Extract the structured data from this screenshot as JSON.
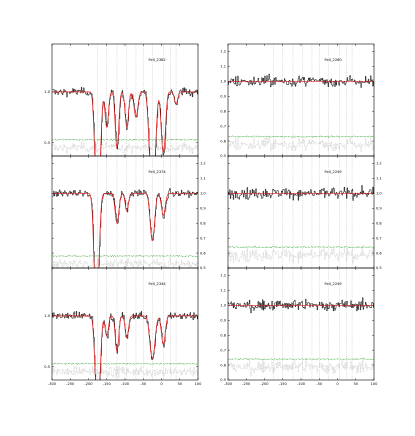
{
  "chart_data": [
    {
      "type": "line",
      "title": "FeII_2382",
      "column": "left",
      "row": 0,
      "xlim": [
        -300,
        100
      ],
      "ylim": [
        0.37,
        1.47
      ],
      "ytick_side": "left",
      "yticks": [
        0.5,
        1.0,
        1.5
      ],
      "ytick_labels": [
        "0.5",
        "1.0",
        "1.5"
      ],
      "noise_level": 0.53,
      "continuum": 1.0,
      "components": [
        {
          "v": -175,
          "depth": 0.92,
          "b": 8
        },
        {
          "v": -150,
          "depth": 0.35,
          "b": 6
        },
        {
          "v": -122,
          "depth": 0.55,
          "b": 6
        },
        {
          "v": -95,
          "depth": 0.35,
          "b": 6
        },
        {
          "v": -70,
          "depth": 0.25,
          "b": 7
        },
        {
          "v": -25,
          "depth": 0.88,
          "b": 9
        },
        {
          "v": 5,
          "depth": 0.6,
          "b": 7
        },
        {
          "v": 40,
          "depth": 0.12,
          "b": 6
        }
      ]
    },
    {
      "type": "line",
      "title": "FeII_2374",
      "column": "left",
      "row": 1,
      "xlim": [
        -300,
        100
      ],
      "ylim": [
        0.5,
        1.25
      ],
      "ytick_side": "right",
      "yticks": [
        0.5,
        0.6,
        0.7,
        0.8,
        0.9,
        1.0,
        1.1,
        1.2
      ],
      "ytick_labels": [
        "0.5",
        "0.6",
        "0.7",
        "0.8",
        "0.9",
        "1.0",
        "1.1",
        "1.2"
      ],
      "noise_level": 0.58,
      "continuum": 1.0,
      "components": [
        {
          "v": -178,
          "depth": 0.72,
          "b": 8
        },
        {
          "v": -122,
          "depth": 0.2,
          "b": 7
        },
        {
          "v": -95,
          "depth": 0.12,
          "b": 6
        },
        {
          "v": -25,
          "depth": 0.32,
          "b": 8
        },
        {
          "v": 5,
          "depth": 0.15,
          "b": 7
        }
      ]
    },
    {
      "type": "line",
      "title": "FeII_2344",
      "column": "left",
      "row": 2,
      "xlim": [
        -300,
        100
      ],
      "ylim": [
        0.37,
        1.47
      ],
      "ytick_side": "left",
      "yticks": [
        0.5,
        1.0,
        1.5
      ],
      "ytick_labels": [
        "0.5",
        "1.0",
        "1.5"
      ],
      "noise_level": 0.53,
      "continuum": 1.0,
      "components": [
        {
          "v": -175,
          "depth": 0.82,
          "b": 8
        },
        {
          "v": -150,
          "depth": 0.2,
          "b": 6
        },
        {
          "v": -122,
          "depth": 0.35,
          "b": 6
        },
        {
          "v": -95,
          "depth": 0.22,
          "b": 6
        },
        {
          "v": -25,
          "depth": 0.42,
          "b": 9
        },
        {
          "v": 5,
          "depth": 0.28,
          "b": 7
        }
      ]
    },
    {
      "type": "line",
      "title": "FeII_2260",
      "column": "right",
      "row": 0,
      "xlim": [
        -300,
        100
      ],
      "ylim": [
        0.5,
        1.25
      ],
      "ytick_side": "left",
      "yticks": [
        0.5,
        0.6,
        0.7,
        0.8,
        0.9,
        1.0,
        1.1,
        1.2
      ],
      "ytick_labels": [
        "0.5",
        "0.6",
        "0.7",
        "0.8",
        "0.9",
        "1.0",
        "1.1",
        "1.2"
      ],
      "noise_level": 0.63,
      "continuum": 1.0,
      "components": []
    },
    {
      "type": "line",
      "title": "FeII_2249",
      "column": "right",
      "row": 1,
      "xlim": [
        -300,
        100
      ],
      "ylim": [
        0.5,
        1.25
      ],
      "ytick_side": "right",
      "yticks": [
        0.5,
        0.6,
        0.7,
        0.8,
        0.9,
        1.0,
        1.1,
        1.2
      ],
      "ytick_labels": [
        "0.5",
        "0.6",
        "0.7",
        "0.8",
        "0.9",
        "1.0",
        "1.1",
        "1.2"
      ],
      "noise_level": 0.64,
      "continuum": 1.0,
      "components": []
    },
    {
      "type": "line",
      "title": "FeII_2249",
      "column": "right",
      "row": 2,
      "xlim": [
        -300,
        100
      ],
      "ylim": [
        0.5,
        1.25
      ],
      "ytick_side": "left",
      "yticks": [
        0.5,
        0.6,
        0.7,
        0.8,
        0.9,
        1.0,
        1.1,
        1.2
      ],
      "ytick_labels": [
        "0.5",
        "0.6",
        "0.7",
        "0.8",
        "0.9",
        "1.0",
        "1.1",
        "1.2"
      ],
      "noise_level": 0.64,
      "continuum": 1.0,
      "components": []
    }
  ],
  "shared": {
    "component_velocities": [
      -175,
      -150,
      -122,
      -95,
      -70,
      -50,
      -25,
      5,
      25,
      40
    ],
    "xticks": [
      -300,
      -250,
      -200,
      -150,
      -100,
      -50,
      0,
      50,
      100
    ],
    "xtick_labels": [
      "-300",
      "-250",
      "-200",
      "-150",
      "-100",
      "-50",
      "0",
      "50",
      "100"
    ],
    "colors": {
      "data": "#000000",
      "model": "#e41a1c",
      "noise": "#2ca02c",
      "residual": "#b0b0b0",
      "component_markers": "#9a9a9a",
      "axes": "#000000"
    }
  }
}
